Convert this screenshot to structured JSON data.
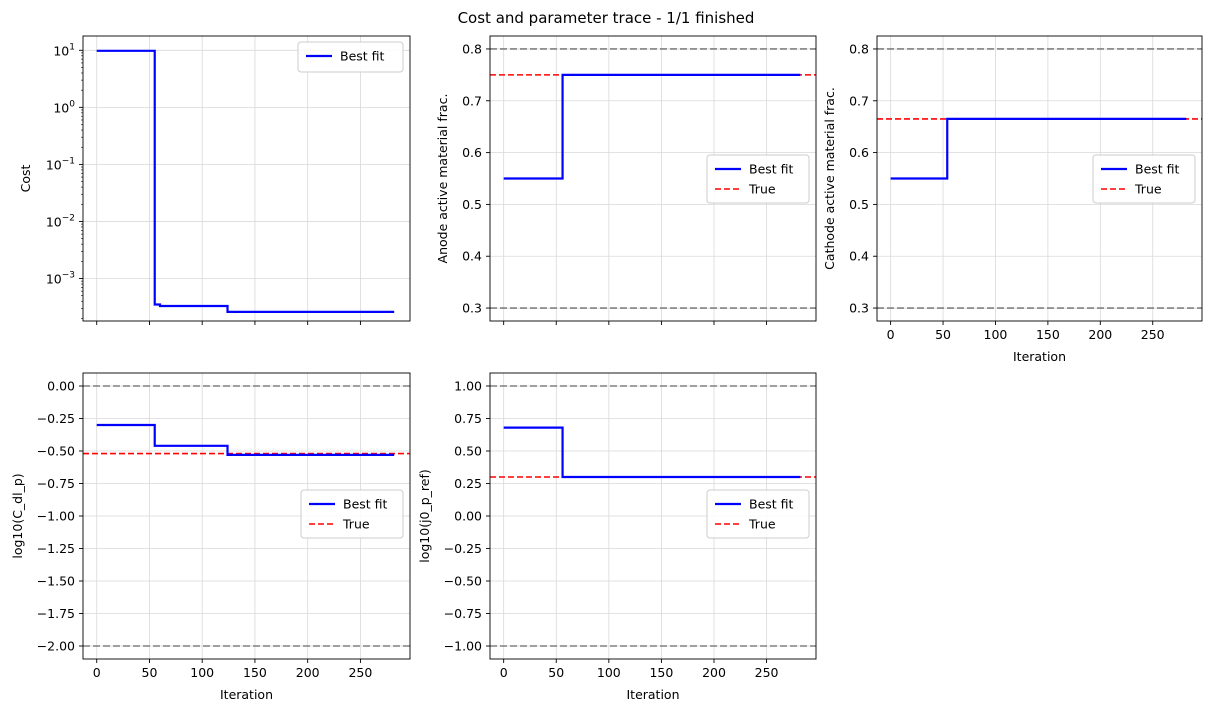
{
  "figure": {
    "title": "Cost and parameter trace - 1/1 finished"
  },
  "chart_data": [
    {
      "type": "line",
      "id": "cost",
      "xlabel": "",
      "ylabel": "Cost",
      "yscale": "log",
      "xlim": [
        -13,
        297
      ],
      "ylim": [
        0.00018,
        17.8
      ],
      "xticks": [
        0,
        50,
        100,
        150,
        200,
        250
      ],
      "xtick_labels_visible": false,
      "yticks": [
        0.001,
        0.01,
        0.1,
        1,
        10
      ],
      "ytick_labels": [
        {
          "base": "10",
          "exp": "−3"
        },
        {
          "base": "10",
          "exp": "−2"
        },
        {
          "base": "10",
          "exp": "−1"
        },
        {
          "base": "10",
          "exp": "0"
        },
        {
          "base": "10",
          "exp": "1"
        }
      ],
      "grid": true,
      "legend": "top-right",
      "series": [
        {
          "name": "Best fit",
          "color": "#0000ff",
          "style": "solid",
          "step": true,
          "x": [
            0,
            55,
            60,
            124,
            282
          ],
          "y": [
            9.8,
            0.00035,
            0.00033,
            0.00026,
            0.00026
          ]
        }
      ],
      "hlines": []
    },
    {
      "type": "line",
      "id": "anode",
      "xlabel": "",
      "ylabel": "Anode active material frac.",
      "xlim": [
        -13,
        297
      ],
      "ylim": [
        0.275,
        0.825
      ],
      "xticks": [
        0,
        50,
        100,
        150,
        200,
        250
      ],
      "xtick_labels_visible": false,
      "yticks": [
        0.3,
        0.4,
        0.5,
        0.6,
        0.7,
        0.8
      ],
      "ytick_labels": [
        "0.3",
        "0.4",
        "0.5",
        "0.6",
        "0.7",
        "0.8"
      ],
      "grid": true,
      "legend": "center-right",
      "series": [
        {
          "name": "Best fit",
          "color": "#0000ff",
          "style": "solid",
          "step": true,
          "x": [
            0,
            56,
            282
          ],
          "y": [
            0.55,
            0.75,
            0.75
          ]
        }
      ],
      "hlines": [
        {
          "y": 0.75,
          "color": "#ff0000",
          "style": "dashed",
          "name": "True"
        },
        {
          "y": 0.8,
          "color": "#808080",
          "style": "dashed"
        },
        {
          "y": 0.3,
          "color": "#808080",
          "style": "dashed"
        }
      ]
    },
    {
      "type": "line",
      "id": "cathode",
      "xlabel": "Iteration",
      "ylabel": "Cathode active material frac.",
      "xlim": [
        -13,
        297
      ],
      "ylim": [
        0.275,
        0.825
      ],
      "xticks": [
        0,
        50,
        100,
        150,
        200,
        250
      ],
      "xtick_labels_visible": true,
      "xtick_labels": [
        "0",
        "50",
        "100",
        "150",
        "200",
        "250"
      ],
      "yticks": [
        0.3,
        0.4,
        0.5,
        0.6,
        0.7,
        0.8
      ],
      "ytick_labels": [
        "0.3",
        "0.4",
        "0.5",
        "0.6",
        "0.7",
        "0.8"
      ],
      "grid": true,
      "legend": "center-right",
      "series": [
        {
          "name": "Best fit",
          "color": "#0000ff",
          "style": "solid",
          "step": true,
          "x": [
            0,
            54,
            282
          ],
          "y": [
            0.55,
            0.665,
            0.665
          ]
        }
      ],
      "hlines": [
        {
          "y": 0.665,
          "color": "#ff0000",
          "style": "dashed",
          "name": "True"
        },
        {
          "y": 0.8,
          "color": "#808080",
          "style": "dashed"
        },
        {
          "y": 0.3,
          "color": "#808080",
          "style": "dashed"
        }
      ]
    },
    {
      "type": "line",
      "id": "cdl",
      "xlabel": "Iteration",
      "ylabel": "log10(C_dl_p)",
      "xlim": [
        -13,
        297
      ],
      "ylim": [
        -2.1,
        0.1
      ],
      "xticks": [
        0,
        50,
        100,
        150,
        200,
        250
      ],
      "xtick_labels_visible": true,
      "xtick_labels": [
        "0",
        "50",
        "100",
        "150",
        "200",
        "250"
      ],
      "yticks": [
        -2.0,
        -1.75,
        -1.5,
        -1.25,
        -1.0,
        -0.75,
        -0.5,
        -0.25,
        0.0
      ],
      "ytick_labels": [
        "−2.00",
        "−1.75",
        "−1.50",
        "−1.25",
        "−1.00",
        "−0.75",
        "−0.50",
        "−0.25",
        "0.00"
      ],
      "grid": true,
      "legend": "center-right",
      "series": [
        {
          "name": "Best fit",
          "color": "#0000ff",
          "style": "solid",
          "step": true,
          "x": [
            0,
            55,
            124,
            282
          ],
          "y": [
            -0.3,
            -0.46,
            -0.53,
            -0.53
          ]
        }
      ],
      "hlines": [
        {
          "y": -0.52,
          "color": "#ff0000",
          "style": "dashed",
          "name": "True"
        },
        {
          "y": 0.0,
          "color": "#808080",
          "style": "dashed"
        },
        {
          "y": -2.0,
          "color": "#808080",
          "style": "dashed"
        }
      ]
    },
    {
      "type": "line",
      "id": "j0",
      "xlabel": "Iteration",
      "ylabel": "log10(j0_p_ref)",
      "xlim": [
        -13,
        297
      ],
      "ylim": [
        -1.1,
        1.1
      ],
      "xticks": [
        0,
        50,
        100,
        150,
        200,
        250
      ],
      "xtick_labels_visible": true,
      "xtick_labels": [
        "0",
        "50",
        "100",
        "150",
        "200",
        "250"
      ],
      "yticks": [
        -1.0,
        -0.75,
        -0.5,
        -0.25,
        0.0,
        0.25,
        0.5,
        0.75,
        1.0
      ],
      "ytick_labels": [
        "−1.00",
        "−0.75",
        "−0.50",
        "−0.25",
        "0.00",
        "0.25",
        "0.50",
        "0.75",
        "1.00"
      ],
      "grid": true,
      "legend": "center-right",
      "series": [
        {
          "name": "Best fit",
          "color": "#0000ff",
          "style": "solid",
          "step": true,
          "x": [
            0,
            56,
            282
          ],
          "y": [
            0.68,
            0.3,
            0.3
          ]
        }
      ],
      "hlines": [
        {
          "y": 0.3,
          "color": "#ff0000",
          "style": "dashed",
          "name": "True"
        },
        {
          "y": 1.0,
          "color": "#808080",
          "style": "dashed"
        },
        {
          "y": -1.0,
          "color": "#808080",
          "style": "dashed"
        }
      ]
    }
  ]
}
